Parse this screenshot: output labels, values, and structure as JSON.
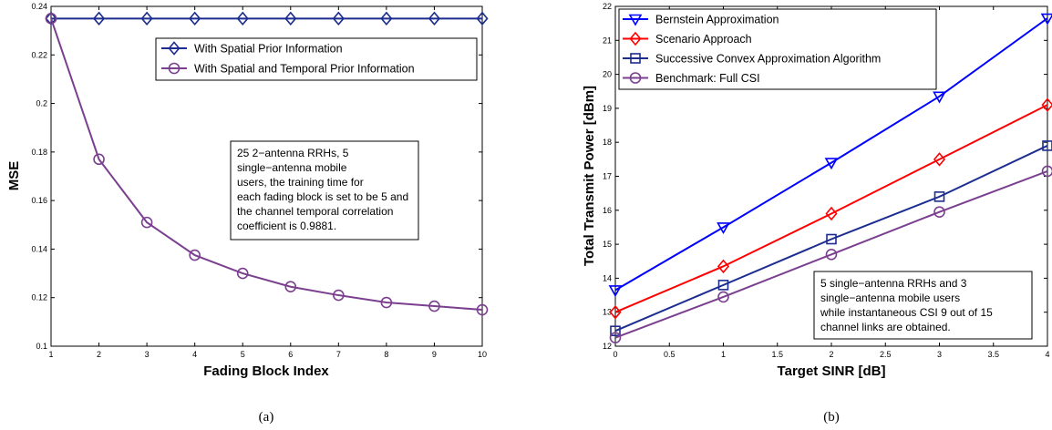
{
  "charts": {
    "a": {
      "caption": "(a)",
      "ylabel": "MSE",
      "xlabel": "Fading Block Index",
      "legend": [
        "With Spatial Prior Information",
        "With Spatial and Temporal Prior Information"
      ],
      "note": [
        "25 2−antenna RRHs, 5",
        "single−antenna mobile",
        "users, the training time for",
        "each fading block is set to be 5 and",
        "the channel temporal correlation",
        "coefficient is 0.9881."
      ],
      "xticks": [
        "1",
        "2",
        "3",
        "4",
        "5",
        "6",
        "7",
        "8",
        "9",
        "10"
      ],
      "yticks": [
        "0.1",
        "0.12",
        "0.14",
        "0.16",
        "0.18",
        "0.2",
        "0.22",
        "0.24"
      ]
    },
    "b": {
      "caption": "(b)",
      "ylabel": "Total Transmit Power [dBm]",
      "xlabel": "Target SINR [dB]",
      "legend": [
        "Bernstein Approximation",
        "Scenario Approach",
        "Successive Convex Approximation Algorithm",
        "Benchmark: Full CSI"
      ],
      "note": [
        "5 single−antenna RRHs and 3",
        "single−antenna mobile users",
        "while instantaneous CSI 9 out of 15",
        "channel links are obtained."
      ],
      "xticks": [
        "0",
        "0.5",
        "1",
        "1.5",
        "2",
        "2.5",
        "3",
        "3.5",
        "4"
      ],
      "yticks": [
        "12",
        "13",
        "14",
        "15",
        "16",
        "17",
        "18",
        "19",
        "20",
        "21",
        "22"
      ]
    }
  },
  "chart_data": [
    {
      "type": "line",
      "xlabel": "Fading Block Index",
      "ylabel": "MSE",
      "xlim": [
        1,
        10
      ],
      "ylim": [
        0.1,
        0.24
      ],
      "grid": false,
      "legend_position": "top-right",
      "x": [
        1,
        2,
        3,
        4,
        5,
        6,
        7,
        8,
        9,
        10
      ],
      "series": [
        {
          "name": "With Spatial Prior Information",
          "color": "#1c2d8f",
          "marker": "diamond",
          "values": [
            0.235,
            0.235,
            0.235,
            0.235,
            0.235,
            0.235,
            0.235,
            0.235,
            0.235,
            0.235
          ]
        },
        {
          "name": "With Spatial and Temporal Prior Information",
          "color": "#7b3f8f",
          "marker": "circle",
          "values": [
            0.235,
            0.177,
            0.151,
            0.1375,
            0.13,
            0.1245,
            0.121,
            0.118,
            0.1165,
            0.115
          ]
        }
      ]
    },
    {
      "type": "line",
      "xlabel": "Target SINR [dB]",
      "ylabel": "Total Transmit Power [dBm]",
      "xlim": [
        0,
        4
      ],
      "ylim": [
        12,
        22
      ],
      "grid": false,
      "legend_position": "top-left",
      "x": [
        0,
        1,
        2,
        3,
        4
      ],
      "series": [
        {
          "name": "Bernstein Approximation",
          "color": "#0000ff",
          "marker": "triangle-down",
          "values": [
            13.65,
            15.5,
            17.4,
            19.35,
            21.65
          ]
        },
        {
          "name": "Scenario Approach",
          "color": "#ff0000",
          "marker": "diamond",
          "values": [
            13.0,
            14.35,
            15.9,
            17.5,
            19.1
          ]
        },
        {
          "name": "Successive Convex Approximation Algorithm",
          "color": "#1c2d8f",
          "marker": "square",
          "values": [
            12.45,
            13.8,
            15.15,
            16.4,
            17.9
          ]
        },
        {
          "name": "Benchmark: Full CSI",
          "color": "#7b3f8f",
          "marker": "circle",
          "values": [
            12.25,
            13.45,
            14.7,
            15.95,
            17.15
          ]
        }
      ]
    }
  ]
}
